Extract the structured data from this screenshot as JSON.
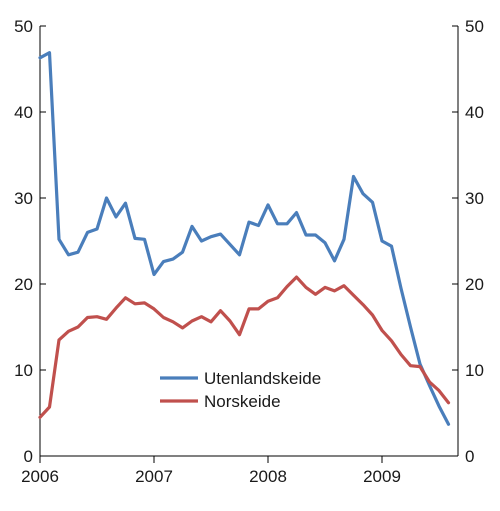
{
  "chart_data": {
    "type": "line",
    "title": "",
    "xlabel": "",
    "ylabel": "",
    "ylim": [
      0,
      50
    ],
    "xlim": [
      "2006-01",
      "2009-09"
    ],
    "yticks": [
      "0",
      "10",
      "20",
      "30",
      "40",
      "50"
    ],
    "xticks": [
      {
        "label": "2006",
        "date": "2006-01"
      },
      {
        "label": "2007",
        "date": "2007-01"
      },
      {
        "label": "2008",
        "date": "2008-01"
      },
      {
        "label": "2009",
        "date": "2009-01"
      }
    ],
    "dual_y_axis": true,
    "grid": false,
    "legend_position": "center",
    "series": [
      {
        "name": "Utenlandskeide",
        "color": "#4a7ebb",
        "x": [
          "2006-01",
          "2006-02",
          "2006-03",
          "2006-04",
          "2006-05",
          "2006-06",
          "2006-07",
          "2006-08",
          "2006-09",
          "2006-10",
          "2006-11",
          "2006-12",
          "2007-01",
          "2007-02",
          "2007-03",
          "2007-04",
          "2007-05",
          "2007-06",
          "2007-07",
          "2007-08",
          "2007-09",
          "2007-10",
          "2007-11",
          "2007-12",
          "2008-01",
          "2008-02",
          "2008-03",
          "2008-04",
          "2008-05",
          "2008-06",
          "2008-07",
          "2008-08",
          "2008-09",
          "2008-10",
          "2008-11",
          "2008-12",
          "2009-01",
          "2009-02",
          "2009-03",
          "2009-04",
          "2009-05",
          "2009-06",
          "2009-07",
          "2009-08"
        ],
        "values": [
          46.3,
          46.9,
          25.2,
          23.4,
          23.7,
          26.0,
          26.4,
          30.0,
          27.8,
          29.4,
          25.3,
          25.2,
          21.1,
          22.6,
          22.9,
          23.7,
          26.7,
          25.0,
          25.5,
          25.8,
          24.6,
          23.4,
          27.2,
          26.8,
          29.2,
          27.0,
          27.0,
          28.3,
          25.7,
          25.7,
          24.8,
          22.7,
          25.2,
          32.5,
          30.5,
          29.5,
          25.0,
          24.4,
          19.5,
          15.0,
          10.7,
          8.2,
          5.8,
          3.7
        ]
      },
      {
        "name": "Norskeide",
        "color": "#c0504d",
        "x": [
          "2006-01",
          "2006-02",
          "2006-03",
          "2006-04",
          "2006-05",
          "2006-06",
          "2006-07",
          "2006-08",
          "2006-09",
          "2006-10",
          "2006-11",
          "2006-12",
          "2007-01",
          "2007-02",
          "2007-03",
          "2007-04",
          "2007-05",
          "2007-06",
          "2007-07",
          "2007-08",
          "2007-09",
          "2007-10",
          "2007-11",
          "2007-12",
          "2008-01",
          "2008-02",
          "2008-03",
          "2008-04",
          "2008-05",
          "2008-06",
          "2008-07",
          "2008-08",
          "2008-09",
          "2008-10",
          "2008-11",
          "2008-12",
          "2009-01",
          "2009-02",
          "2009-03",
          "2009-04",
          "2009-05",
          "2009-06",
          "2009-07",
          "2009-08"
        ],
        "values": [
          4.5,
          5.7,
          13.5,
          14.5,
          15.0,
          16.1,
          16.2,
          15.9,
          17.2,
          18.4,
          17.7,
          17.8,
          17.1,
          16.1,
          15.6,
          14.9,
          15.7,
          16.2,
          15.6,
          16.9,
          15.7,
          14.1,
          17.1,
          17.1,
          18.0,
          18.4,
          19.7,
          20.8,
          19.6,
          18.8,
          19.6,
          19.2,
          19.8,
          18.7,
          17.6,
          16.4,
          14.6,
          13.4,
          11.8,
          10.5,
          10.4,
          8.6,
          7.6,
          6.2
        ]
      }
    ]
  }
}
